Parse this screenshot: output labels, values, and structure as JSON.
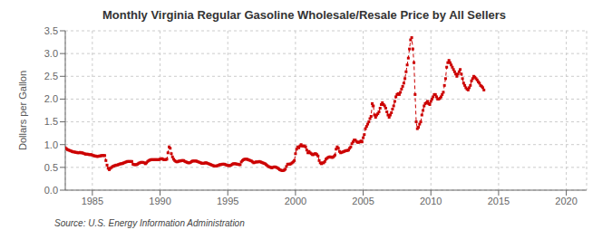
{
  "chart_data": {
    "type": "line",
    "title": "Monthly Virginia Regular Gasoline Wholesale/Resale Price by All Sellers",
    "ylabel": "Dollars per Gallon",
    "source": "Source: U.S. Energy Information Administration",
    "color": "#cc0000",
    "marker": "square",
    "line_style": "dashed",
    "grid": true,
    "xlim": [
      1983.0,
      2021.5
    ],
    "ylim": [
      0.0,
      3.5
    ],
    "xticks": [
      1985,
      1990,
      1995,
      2000,
      2005,
      2010,
      2015,
      2020
    ],
    "yticks": [
      {
        "value": 0.0,
        "label": "0.0"
      },
      0.5,
      {
        "value": 1.0,
        "label": "1.0"
      },
      1.5,
      {
        "value": 2.0,
        "label": "2.0"
      },
      2.5,
      {
        "value": 3.0,
        "label": "3.0"
      },
      3.5
    ],
    "x": [
      1983,
      1983.0833333333333,
      1983.1666666666667,
      1983.25,
      1983.3333333333333,
      1983.4166666666667,
      1983.5,
      1983.5833333333333,
      1983.6666666666667,
      1983.75,
      1983.8333333333333,
      1983.9166666666667,
      1984,
      1984.0833333333333,
      1984.1666666666667,
      1984.25,
      1984.3333333333333,
      1984.4166666666667,
      1984.5,
      1984.5833333333333,
      1984.6666666666667,
      1984.75,
      1984.8333333333333,
      1984.9166666666667,
      1985,
      1985.0833333333333,
      1985.1666666666667,
      1985.25,
      1985.3333333333333,
      1985.4166666666667,
      1985.5,
      1985.5833333333333,
      1985.6666666666667,
      1985.75,
      1985.8333333333333,
      1985.9166666666667,
      1986,
      1986.0833333333333,
      1986.1666666666667,
      1986.25,
      1986.3333333333333,
      1986.4166666666667,
      1986.5,
      1986.5833333333333,
      1986.6666666666667,
      1986.75,
      1986.8333333333333,
      1986.9166666666667,
      1987,
      1987.0833333333333,
      1987.1666666666667,
      1987.25,
      1987.3333333333333,
      1987.4166666666667,
      1987.5,
      1987.5833333333333,
      1987.6666666666667,
      1987.75,
      1987.8333333333333,
      1987.9166666666667,
      1988,
      1988.0833333333333,
      1988.1666666666667,
      1988.25,
      1988.3333333333333,
      1988.4166666666667,
      1988.5,
      1988.5833333333333,
      1988.6666666666667,
      1988.75,
      1988.8333333333333,
      1988.9166666666667,
      1989,
      1989.0833333333333,
      1989.1666666666667,
      1989.25,
      1989.3333333333333,
      1989.4166666666667,
      1989.5,
      1989.5833333333333,
      1989.6666666666667,
      1989.75,
      1989.8333333333333,
      1989.9166666666667,
      1990,
      1990.0833333333333,
      1990.1666666666667,
      1990.25,
      1990.3333333333333,
      1990.4166666666667,
      1990.5,
      1990.5833333333333,
      1990.6666666666667,
      1990.75,
      1990.8333333333333,
      1990.9166666666667,
      1991,
      1991.0833333333333,
      1991.1666666666667,
      1991.25,
      1991.3333333333333,
      1991.4166666666667,
      1991.5,
      1991.5833333333333,
      1991.6666666666667,
      1991.75,
      1991.8333333333333,
      1991.9166666666667,
      1992,
      1992.0833333333333,
      1992.1666666666667,
      1992.25,
      1992.3333333333333,
      1992.4166666666667,
      1992.5,
      1992.5833333333333,
      1992.6666666666667,
      1992.75,
      1992.8333333333333,
      1992.9166666666667,
      1993,
      1993.0833333333333,
      1993.1666666666667,
      1993.25,
      1993.3333333333333,
      1993.4166666666667,
      1993.5,
      1993.5833333333333,
      1993.6666666666667,
      1993.75,
      1993.8333333333333,
      1993.9166666666667,
      1994,
      1994.0833333333333,
      1994.1666666666667,
      1994.25,
      1994.3333333333333,
      1994.4166666666667,
      1994.5,
      1994.5833333333333,
      1994.6666666666667,
      1994.75,
      1994.8333333333333,
      1994.9166666666667,
      1995,
      1995.0833333333333,
      1995.1666666666667,
      1995.25,
      1995.3333333333333,
      1995.4166666666667,
      1995.5,
      1995.5833333333333,
      1995.6666666666667,
      1995.75,
      1995.8333333333333,
      1995.9166666666667,
      1996,
      1996.0833333333333,
      1996.1666666666667,
      1996.25,
      1996.3333333333333,
      1996.4166666666667,
      1996.5,
      1996.5833333333333,
      1996.6666666666667,
      1996.75,
      1996.8333333333333,
      1996.9166666666667,
      1997,
      1997.0833333333333,
      1997.1666666666667,
      1997.25,
      1997.3333333333333,
      1997.4166666666667,
      1997.5,
      1997.5833333333333,
      1997.6666666666667,
      1997.75,
      1997.8333333333333,
      1997.9166666666667,
      1998,
      1998.0833333333333,
      1998.1666666666667,
      1998.25,
      1998.3333333333333,
      1998.4166666666667,
      1998.5,
      1998.5833333333333,
      1998.6666666666667,
      1998.75,
      1998.8333333333333,
      1998.9166666666667,
      1999,
      1999.0833333333333,
      1999.1666666666667,
      1999.25,
      1999.3333333333333,
      1999.4166666666667,
      1999.5,
      1999.5833333333333,
      1999.6666666666667,
      1999.75,
      1999.8333333333333,
      1999.9166666666667,
      2000,
      2000.0833333333333,
      2000.1666666666667,
      2000.25,
      2000.3333333333333,
      2000.4166666666667,
      2000.5,
      2000.5833333333333,
      2000.6666666666667,
      2000.75,
      2000.8333333333333,
      2000.9166666666667,
      2001,
      2001.0833333333333,
      2001.1666666666667,
      2001.25,
      2001.3333333333333,
      2001.4166666666667,
      2001.5,
      2001.5833333333333,
      2001.6666666666667,
      2001.75,
      2001.8333333333333,
      2001.9166666666667,
      2002,
      2002.0833333333333,
      2002.1666666666667,
      2002.25,
      2002.3333333333333,
      2002.4166666666667,
      2002.5,
      2002.5833333333333,
      2002.6666666666667,
      2002.75,
      2002.8333333333333,
      2002.9166666666667,
      2003,
      2003.0833333333333,
      2003.1666666666667,
      2003.25,
      2003.3333333333333,
      2003.4166666666667,
      2003.5,
      2003.5833333333333,
      2003.6666666666667,
      2003.75,
      2003.8333333333333,
      2003.9166666666667,
      2004,
      2004.0833333333333,
      2004.1666666666667,
      2004.25,
      2004.3333333333333,
      2004.4166666666667,
      2004.5,
      2004.5833333333333,
      2004.6666666666667,
      2004.75,
      2004.8333333333333,
      2004.9166666666667,
      2005,
      2005.0833333333333,
      2005.1666666666667,
      2005.25,
      2005.3333333333333,
      2005.4166666666667,
      2005.5,
      2005.5833333333333,
      2005.6666666666667,
      2005.75,
      2005.8333333333333,
      2005.9166666666667,
      2006,
      2006.0833333333333,
      2006.1666666666667,
      2006.25,
      2006.3333333333333,
      2006.4166666666667,
      2006.5,
      2006.5833333333333,
      2006.6666666666667,
      2006.75,
      2006.8333333333333,
      2006.9166666666667,
      2007,
      2007.0833333333333,
      2007.1666666666667,
      2007.25,
      2007.3333333333333,
      2007.4166666666667,
      2007.5,
      2007.5833333333333,
      2007.6666666666667,
      2007.75,
      2007.8333333333333,
      2007.9166666666667,
      2008,
      2008.0833333333333,
      2008.1666666666667,
      2008.25,
      2008.3333333333333,
      2008.4166666666667,
      2008.5,
      2008.5833333333333,
      2008.6666666666667,
      2008.75,
      2008.8333333333333,
      2008.9166666666667,
      2009,
      2009.0833333333333,
      2009.1666666666667,
      2009.25,
      2009.3333333333333,
      2009.4166666666667,
      2009.5,
      2009.5833333333333,
      2009.6666666666667,
      2009.75,
      2009.8333333333333,
      2009.9166666666667,
      2010,
      2010.0833333333333,
      2010.1666666666667,
      2010.25,
      2010.3333333333333,
      2010.4166666666667,
      2010.5,
      2010.5833333333333,
      2010.6666666666667,
      2010.75,
      2010.8333333333333,
      2010.9166666666667,
      2011,
      2011.0833333333333,
      2011.1666666666667,
      2011.25,
      2011.3333333333333,
      2011.4166666666667,
      2011.5,
      2011.5833333333333,
      2011.6666666666667,
      2011.75,
      2011.8333333333333,
      2011.9166666666667,
      2012,
      2012.0833333333333,
      2012.1666666666667,
      2012.25,
      2012.3333333333333,
      2012.4166666666667,
      2012.5,
      2012.5833333333333,
      2012.6666666666667,
      2012.75,
      2012.8333333333333,
      2012.9166666666667,
      2013,
      2013.0833333333333,
      2013.1666666666667,
      2013.25,
      2013.3333333333333,
      2013.4166666666667,
      2013.5,
      2013.5833333333333,
      2013.6666666666667,
      2013.75,
      2013.8333333333333,
      2013.9166666666667
    ],
    "values": [
      0.93,
      0.91,
      0.89,
      0.88,
      0.87,
      0.86,
      0.85,
      0.84,
      0.84,
      0.83,
      0.83,
      0.82,
      0.82,
      0.83,
      0.82,
      0.82,
      0.81,
      0.8,
      0.79,
      0.79,
      0.79,
      0.78,
      0.78,
      0.78,
      0.77,
      0.76,
      0.75,
      0.75,
      0.74,
      0.74,
      0.75,
      0.75,
      0.76,
      0.76,
      0.76,
      0.76,
      0.65,
      0.55,
      0.48,
      0.45,
      0.48,
      0.5,
      0.52,
      0.53,
      0.54,
      0.55,
      0.55,
      0.56,
      0.57,
      0.58,
      0.58,
      0.59,
      0.6,
      0.61,
      0.62,
      0.63,
      0.63,
      0.63,
      0.63,
      0.63,
      0.57,
      0.56,
      0.56,
      0.56,
      0.57,
      0.59,
      0.6,
      0.61,
      0.61,
      0.61,
      0.6,
      0.58,
      0.6,
      0.63,
      0.65,
      0.66,
      0.67,
      0.67,
      0.67,
      0.67,
      0.67,
      0.67,
      0.67,
      0.67,
      0.68,
      0.69,
      0.69,
      0.67,
      0.67,
      0.67,
      0.68,
      0.82,
      0.95,
      0.92,
      0.8,
      0.73,
      0.68,
      0.65,
      0.63,
      0.62,
      0.63,
      0.64,
      0.64,
      0.65,
      0.65,
      0.65,
      0.63,
      0.62,
      0.61,
      0.6,
      0.6,
      0.61,
      0.63,
      0.64,
      0.64,
      0.64,
      0.64,
      0.63,
      0.62,
      0.61,
      0.6,
      0.59,
      0.59,
      0.59,
      0.6,
      0.6,
      0.59,
      0.58,
      0.57,
      0.56,
      0.55,
      0.54,
      0.53,
      0.53,
      0.53,
      0.54,
      0.55,
      0.56,
      0.56,
      0.57,
      0.57,
      0.57,
      0.56,
      0.55,
      0.54,
      0.54,
      0.54,
      0.55,
      0.57,
      0.58,
      0.58,
      0.58,
      0.57,
      0.57,
      0.56,
      0.56,
      0.62,
      0.65,
      0.67,
      0.68,
      0.68,
      0.68,
      0.67,
      0.66,
      0.65,
      0.64,
      0.62,
      0.6,
      0.61,
      0.62,
      0.62,
      0.62,
      0.63,
      0.62,
      0.61,
      0.6,
      0.59,
      0.58,
      0.56,
      0.54,
      0.52,
      0.51,
      0.5,
      0.49,
      0.5,
      0.51,
      0.51,
      0.5,
      0.49,
      0.47,
      0.45,
      0.44,
      0.43,
      0.43,
      0.44,
      0.46,
      0.52,
      0.57,
      0.57,
      0.57,
      0.58,
      0.6,
      0.62,
      0.65,
      0.8,
      0.9,
      0.95,
      0.93,
      0.97,
      1.0,
      0.97,
      0.97,
      0.97,
      0.95,
      0.88,
      0.82,
      0.85,
      0.82,
      0.8,
      0.78,
      0.78,
      0.8,
      0.8,
      0.78,
      0.75,
      0.65,
      0.6,
      0.58,
      0.6,
      0.6,
      0.63,
      0.68,
      0.7,
      0.72,
      0.73,
      0.73,
      0.72,
      0.72,
      0.74,
      0.77,
      0.9,
      0.95,
      0.92,
      0.85,
      0.82,
      0.83,
      0.84,
      0.85,
      0.86,
      0.87,
      0.87,
      0.88,
      0.92,
      0.95,
      1.02,
      1.06,
      1.1,
      1.1,
      1.07,
      1.05,
      1.05,
      1.06,
      1.08,
      1.06,
      1.15,
      1.22,
      1.35,
      1.4,
      1.45,
      1.5,
      1.57,
      1.62,
      1.9,
      1.85,
      1.65,
      1.6,
      1.65,
      1.68,
      1.72,
      1.8,
      1.88,
      1.92,
      1.88,
      1.85,
      1.8,
      1.72,
      1.65,
      1.6,
      1.65,
      1.7,
      1.78,
      1.85,
      1.95,
      2.05,
      2.1,
      2.12,
      2.1,
      2.15,
      2.22,
      2.28,
      2.35,
      2.45,
      2.6,
      2.75,
      2.9,
      3.1,
      3.3,
      3.35,
      3.1,
      2.8,
      2.1,
      1.5,
      1.35,
      1.38,
      1.45,
      1.5,
      1.65,
      1.75,
      1.85,
      1.9,
      1.92,
      1.95,
      1.9,
      1.88,
      1.95,
      2.0,
      2.05,
      2.1,
      2.1,
      2.05,
      2.0,
      2.0,
      2.02,
      2.05,
      2.1,
      2.15,
      2.3,
      2.45,
      2.7,
      2.8,
      2.85,
      2.8,
      2.75,
      2.7,
      2.65,
      2.6,
      2.55,
      2.5,
      2.55,
      2.6,
      2.65,
      2.55,
      2.45,
      2.35,
      2.3,
      2.25,
      2.22,
      2.2,
      2.25,
      2.3,
      2.4,
      2.45,
      2.5,
      2.48,
      2.45,
      2.42,
      2.38,
      2.35,
      2.3,
      2.28,
      2.25,
      2.2
    ]
  }
}
